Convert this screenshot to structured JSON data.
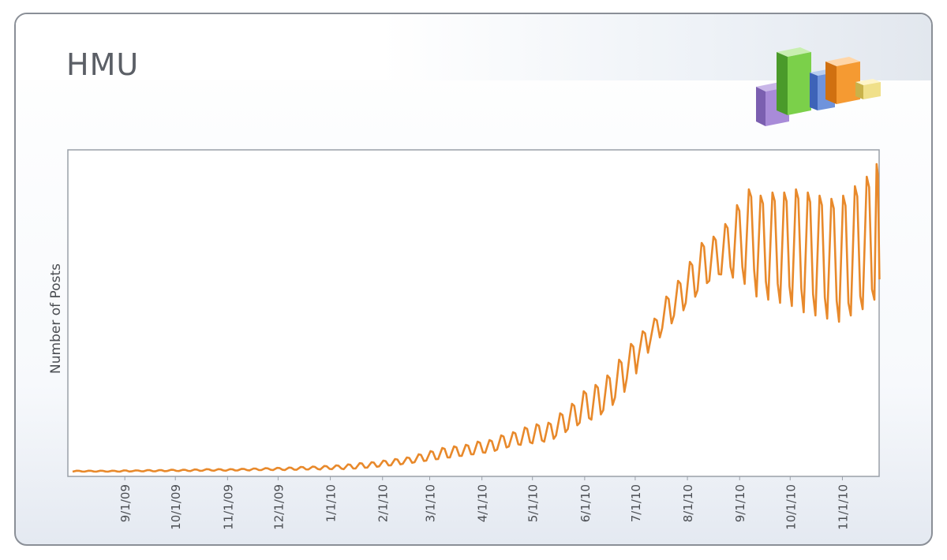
{
  "panel": {
    "title": "HMU",
    "logo_icon": "bar-chart-3d-icon"
  },
  "colors": {
    "series": "#e8892b",
    "frame": "#9aa0a8",
    "text": "#4a4d52"
  },
  "chart_data": {
    "type": "line",
    "title": "",
    "xlabel": "",
    "ylabel": "Number of Posts",
    "x_start": "2009-08-01",
    "x_end": "2010-11-20",
    "ylim": [
      0,
      100
    ],
    "grid": false,
    "legend": "none",
    "tick_labels": [
      "9/1/09",
      "10/1/09",
      "11/1/09",
      "12/1/09",
      "1/1/10",
      "2/1/10",
      "3/1/10",
      "4/1/10",
      "5/1/10",
      "6/1/10",
      "7/1/10",
      "8/1/10",
      "9/1/10",
      "10/1/10",
      "11/1/10"
    ],
    "tick_dates": [
      "2009-09-01",
      "2009-10-01",
      "2009-11-01",
      "2009-12-01",
      "2010-01-01",
      "2010-02-01",
      "2010-03-01",
      "2010-04-01",
      "2010-05-01",
      "2010-06-01",
      "2010-07-01",
      "2010-08-01",
      "2010-09-01",
      "2010-10-01",
      "2010-11-01"
    ],
    "series": [
      {
        "color": "#e8892b",
        "x": [
          "2009-08-01",
          "2009-08-08",
          "2009-08-15",
          "2009-08-22",
          "2009-08-29",
          "2009-09-05",
          "2009-09-12",
          "2009-09-19",
          "2009-09-26",
          "2009-10-03",
          "2009-10-10",
          "2009-10-17",
          "2009-10-24",
          "2009-10-31",
          "2009-11-07",
          "2009-11-14",
          "2009-11-21",
          "2009-11-28",
          "2009-12-05",
          "2009-12-12",
          "2009-12-19",
          "2009-12-26",
          "2010-01-02",
          "2010-01-09",
          "2010-01-16",
          "2010-01-23",
          "2010-01-30",
          "2010-02-06",
          "2010-02-13",
          "2010-02-20",
          "2010-02-27",
          "2010-03-06",
          "2010-03-13",
          "2010-03-20",
          "2010-03-27",
          "2010-04-03",
          "2010-04-10",
          "2010-04-17",
          "2010-04-24",
          "2010-05-01",
          "2010-05-08",
          "2010-05-15",
          "2010-05-22",
          "2010-05-29",
          "2010-06-05",
          "2010-06-12",
          "2010-06-19",
          "2010-06-26",
          "2010-07-03",
          "2010-07-10",
          "2010-07-17",
          "2010-07-24",
          "2010-07-31",
          "2010-08-07",
          "2010-08-14",
          "2010-08-21",
          "2010-08-28",
          "2010-09-04",
          "2010-09-11",
          "2010-09-18",
          "2010-09-25",
          "2010-10-02",
          "2010-10-09",
          "2010-10-16",
          "2010-10-23",
          "2010-10-30",
          "2010-11-06",
          "2010-11-13",
          "2010-11-20"
        ],
        "low": [
          0.5,
          0.5,
          0.5,
          0.5,
          0.5,
          0.6,
          0.6,
          0.6,
          0.7,
          0.7,
          0.7,
          0.8,
          0.8,
          0.8,
          0.9,
          0.9,
          1,
          1,
          1,
          1.1,
          1.2,
          1.2,
          1.3,
          1.3,
          1.5,
          1.8,
          2.2,
          2.5,
          3,
          3.5,
          4,
          4.5,
          5,
          5.5,
          6,
          6.5,
          7.5,
          8.5,
          9,
          9.5,
          10,
          12,
          14,
          16,
          17,
          20,
          24,
          30,
          37,
          42,
          46,
          50,
          54,
          58,
          61,
          63,
          62,
          60,
          56,
          55,
          54,
          53,
          51,
          50,
          49,
          48,
          50,
          52,
          55
        ],
        "high": [
          0.8,
          0.8,
          0.8,
          0.8,
          0.9,
          0.9,
          1,
          1,
          1.1,
          1.1,
          1.2,
          1.3,
          1.3,
          1.3,
          1.4,
          1.5,
          1.6,
          1.7,
          1.8,
          2,
          2.1,
          2.3,
          2.5,
          2.8,
          3.2,
          3.5,
          4,
          4.5,
          5,
          6,
          7,
          8,
          8.5,
          9,
          10,
          10.5,
          12,
          13,
          14.5,
          15.5,
          16,
          19,
          22,
          26,
          28,
          31,
          36,
          41,
          45,
          49,
          56,
          61,
          67,
          73,
          75,
          79,
          85,
          90,
          88,
          89,
          89,
          90,
          89,
          88,
          87,
          88,
          91,
          94,
          98
        ]
      }
    ]
  }
}
